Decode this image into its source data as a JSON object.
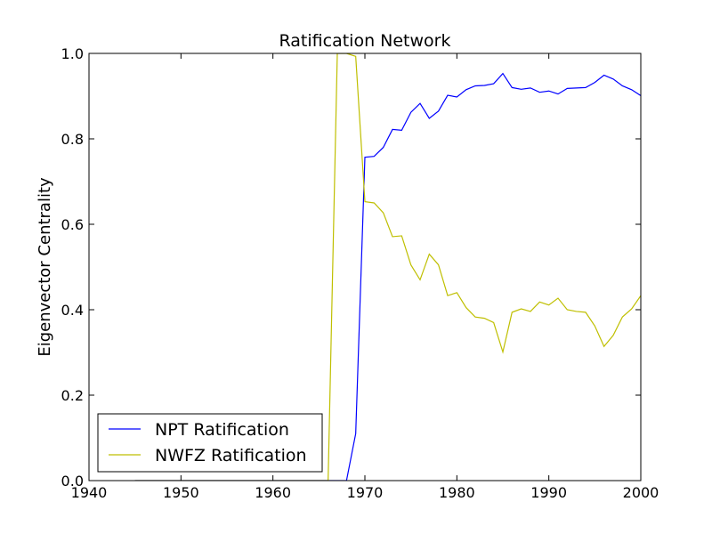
{
  "chart_data": {
    "type": "line",
    "title": "Ratification Network",
    "xlabel": "",
    "ylabel": "Eigenvector Centrality",
    "xlim": [
      1940,
      2000
    ],
    "ylim": [
      0.0,
      1.0
    ],
    "x_ticks": [
      "1940",
      "1950",
      "1960",
      "1970",
      "1980",
      "1990",
      "2000"
    ],
    "y_ticks": [
      "0.0",
      "0.2",
      "0.4",
      "0.6",
      "0.8",
      "1.0"
    ],
    "grid": false,
    "legend_position": "lower-left",
    "series": [
      {
        "name": "NPT Ratification",
        "color": "#0000ff",
        "x": [
          1945,
          1946,
          1947,
          1948,
          1949,
          1950,
          1951,
          1952,
          1953,
          1954,
          1955,
          1956,
          1957,
          1958,
          1959,
          1960,
          1961,
          1962,
          1963,
          1964,
          1965,
          1966,
          1967,
          1968,
          1969,
          1970,
          1971,
          1972,
          1973,
          1974,
          1975,
          1976,
          1977,
          1978,
          1979,
          1980,
          1981,
          1982,
          1983,
          1984,
          1985,
          1986,
          1987,
          1988,
          1989,
          1990,
          1991,
          1992,
          1993,
          1994,
          1995,
          1996,
          1997,
          1998,
          1999,
          2000
        ],
        "y": [
          0,
          0,
          0,
          0,
          0,
          0,
          0,
          0,
          0,
          0,
          0,
          0,
          0,
          0,
          0,
          0,
          0,
          0,
          0,
          0,
          0,
          0,
          0,
          0,
          0.11,
          0.757,
          0.759,
          0.78,
          0.822,
          0.82,
          0.862,
          0.883,
          0.848,
          0.865,
          0.902,
          0.898,
          0.915,
          0.924,
          0.925,
          0.929,
          0.953,
          0.92,
          0.916,
          0.919,
          0.909,
          0.912,
          0.905,
          0.918,
          0.919,
          0.92,
          0.932,
          0.949,
          0.94,
          0.924,
          0.915,
          0.901
        ]
      },
      {
        "name": "NWFZ Ratification",
        "color": "#bfbf00",
        "x": [
          1945,
          1946,
          1947,
          1948,
          1949,
          1950,
          1951,
          1952,
          1953,
          1954,
          1955,
          1956,
          1957,
          1958,
          1959,
          1960,
          1961,
          1962,
          1963,
          1964,
          1965,
          1966,
          1967,
          1968,
          1969,
          1970,
          1971,
          1972,
          1973,
          1974,
          1975,
          1976,
          1977,
          1978,
          1979,
          1980,
          1981,
          1982,
          1983,
          1984,
          1985,
          1986,
          1987,
          1988,
          1989,
          1990,
          1991,
          1992,
          1993,
          1994,
          1995,
          1996,
          1997,
          1998,
          1999,
          2000
        ],
        "y": [
          0,
          0,
          0,
          0,
          0,
          0,
          0,
          0,
          0,
          0,
          0,
          0,
          0,
          0,
          0,
          0,
          0,
          0,
          0,
          0,
          0,
          0,
          1.0,
          1.0,
          0.993,
          0.653,
          0.65,
          0.627,
          0.571,
          0.573,
          0.505,
          0.47,
          0.53,
          0.505,
          0.433,
          0.44,
          0.405,
          0.383,
          0.38,
          0.37,
          0.301,
          0.394,
          0.402,
          0.396,
          0.418,
          0.411,
          0.427,
          0.4,
          0.396,
          0.394,
          0.362,
          0.314,
          0.34,
          0.383,
          0.402,
          0.433
        ]
      }
    ]
  }
}
